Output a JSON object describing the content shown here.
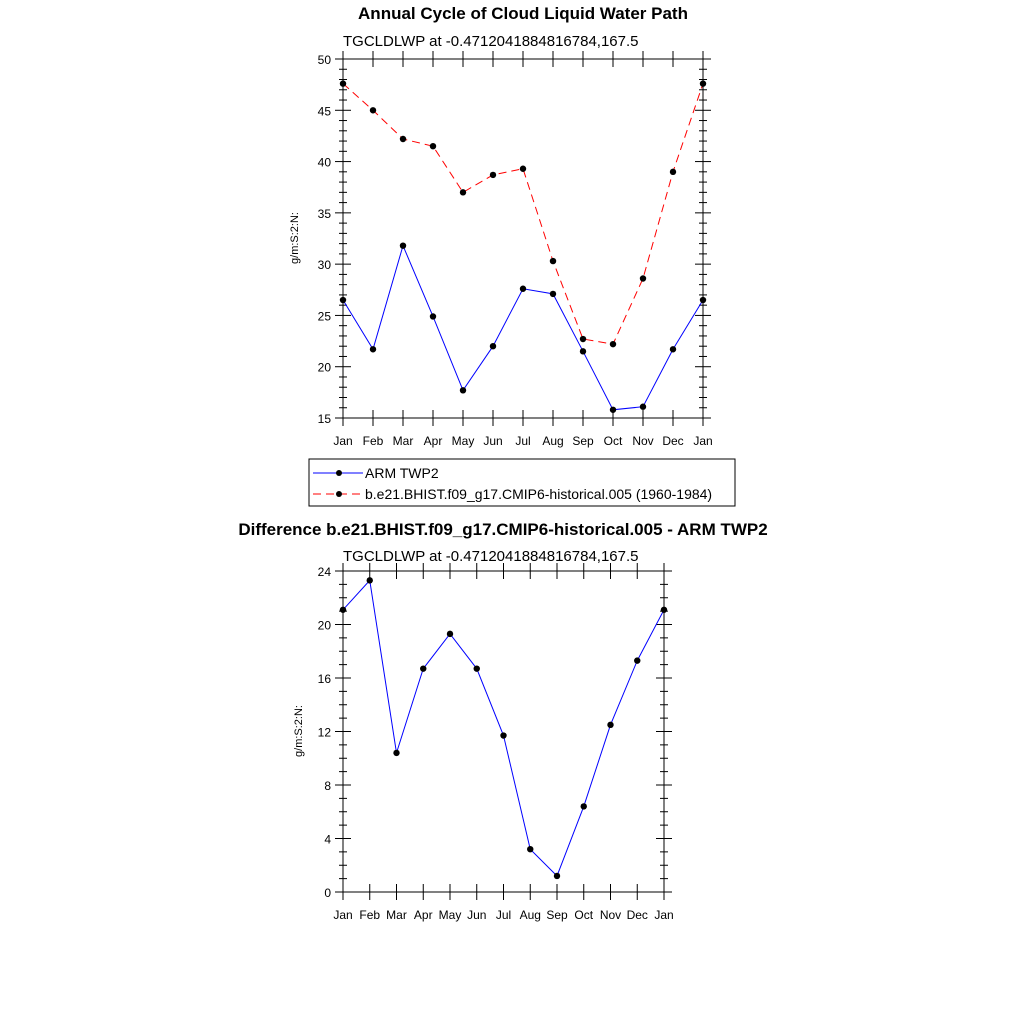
{
  "chart_data": [
    {
      "type": "line",
      "title": "Annual Cycle of Cloud Liquid Water Path",
      "subtitle": "TGCLDLWP at -0.4712041884816784,167.5",
      "xlabel": "",
      "ylabel": "g/m:S:2:N:",
      "categories": [
        "Jan",
        "Feb",
        "Mar",
        "Apr",
        "May",
        "Jun",
        "Jul",
        "Aug",
        "Sep",
        "Oct",
        "Nov",
        "Dec",
        "Jan"
      ],
      "ylim": [
        15,
        50
      ],
      "yticks": [
        15,
        20,
        25,
        30,
        35,
        40,
        45,
        50
      ],
      "series": [
        {
          "name": "ARM TWP2",
          "color": "#0000ff",
          "dash": "solid",
          "values": [
            26.5,
            21.7,
            31.8,
            24.9,
            17.7,
            22.0,
            27.6,
            27.1,
            21.5,
            15.8,
            16.1,
            21.7,
            26.5
          ]
        },
        {
          "name": "b.e21.BHIST.f09_g17.CMIP6-historical.005 (1960-1984)",
          "color": "#ff0000",
          "dash": "dashed",
          "values": [
            47.6,
            45.0,
            42.2,
            41.5,
            37.0,
            38.7,
            39.3,
            30.3,
            22.7,
            22.2,
            28.6,
            39.0,
            47.6
          ]
        }
      ],
      "legend": [
        "ARM TWP2",
        "b.e21.BHIST.f09_g17.CMIP6-historical.005 (1960-1984)"
      ]
    },
    {
      "type": "line",
      "title": "Difference b.e21.BHIST.f09_g17.CMIP6-historical.005 - ARM TWP2",
      "subtitle": "TGCLDLWP at -0.4712041884816784,167.5",
      "xlabel": "",
      "ylabel": "g/m:S:2:N:",
      "categories": [
        "Jan",
        "Feb",
        "Mar",
        "Apr",
        "May",
        "Jun",
        "Jul",
        "Aug",
        "Sep",
        "Oct",
        "Nov",
        "Dec",
        "Jan"
      ],
      "ylim": [
        0,
        24
      ],
      "yticks": [
        0,
        4,
        8,
        12,
        16,
        20,
        24
      ],
      "series": [
        {
          "name": "Difference",
          "color": "#0000ff",
          "dash": "solid",
          "values": [
            21.1,
            23.3,
            10.4,
            16.7,
            19.3,
            16.7,
            11.7,
            3.2,
            1.2,
            6.4,
            12.5,
            17.3,
            21.1
          ]
        }
      ]
    }
  ]
}
